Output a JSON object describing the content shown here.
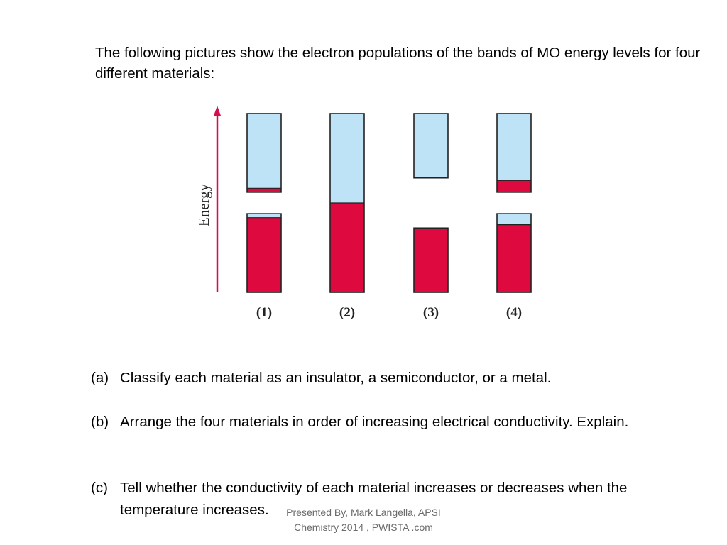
{
  "intro": "The following pictures show the electron populations of the bands of MO energy levels for four different materials:",
  "diagram": {
    "axis_label": "Energy",
    "colors": {
      "empty": "#bfe3f6",
      "filled": "#de0a3f",
      "outline": "#222222",
      "arrow": "#d3104a"
    },
    "materials": [
      {
        "label": "(1)",
        "bands": [
          {
            "top": 0.0,
            "bottom": 0.44,
            "fill": 0.05
          },
          {
            "top": 0.56,
            "bottom": 1.0,
            "fill": 0.95
          }
        ]
      },
      {
        "label": "(2)",
        "bands": [
          {
            "top": 0.0,
            "bottom": 1.0,
            "fill": 0.5
          }
        ]
      },
      {
        "label": "(3)",
        "bands": [
          {
            "top": 0.0,
            "bottom": 0.36,
            "fill": 0.0
          },
          {
            "top": 0.64,
            "bottom": 1.0,
            "fill": 1.0
          }
        ]
      },
      {
        "label": "(4)",
        "bands": [
          {
            "top": 0.0,
            "bottom": 0.44,
            "fill": 0.15
          },
          {
            "top": 0.56,
            "bottom": 1.0,
            "fill": 0.86
          }
        ]
      }
    ]
  },
  "questions": [
    {
      "tag": "(a)",
      "text": "Classify each material as an insulator, a semiconductor, or a metal."
    },
    {
      "tag": "(b)",
      "text": "Arrange the four materials in order of increasing electrical conductivity. Explain."
    },
    {
      "tag": "(c)",
      "text": "Tell whether the conductivity of each material increases or decreases when the temperature increases."
    }
  ],
  "footer": "Presented By, Mark Langella, APSI Chemistry 2014 , PWISTA .com"
}
